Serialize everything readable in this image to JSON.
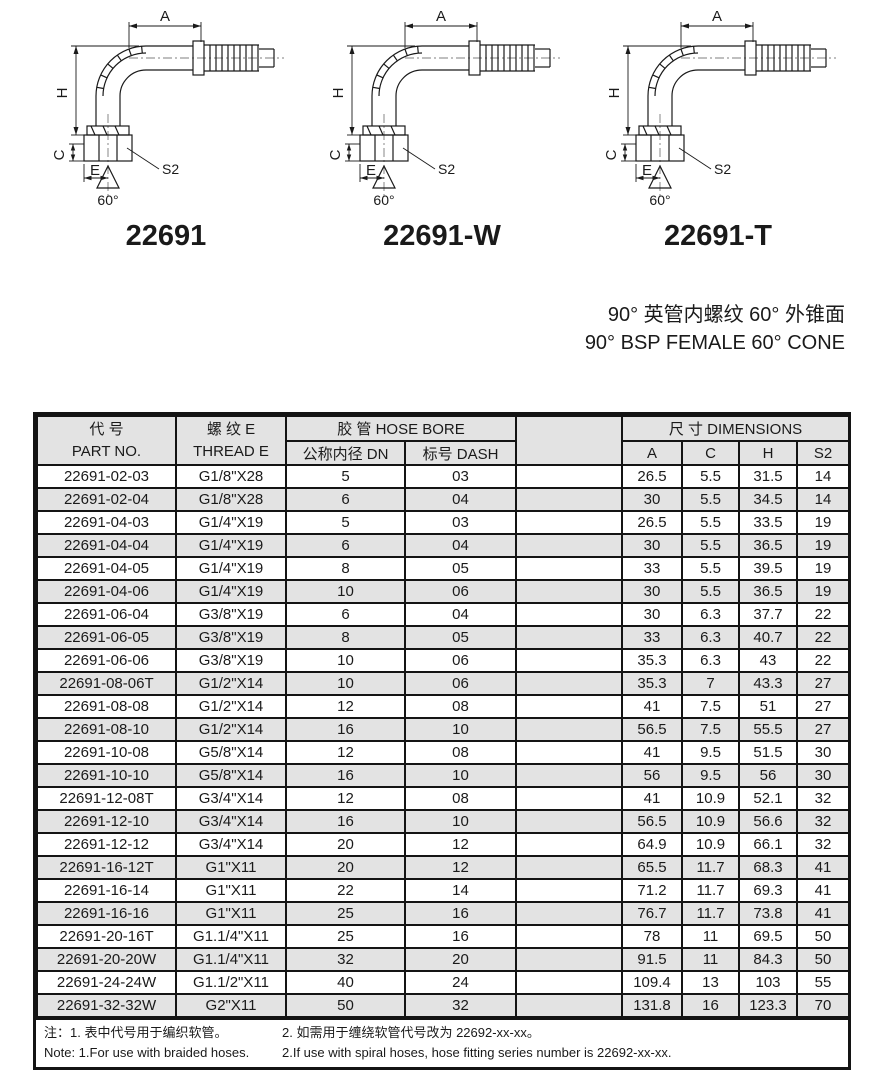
{
  "diagrams": [
    {
      "caption": "22691",
      "labels": {
        "a": "A",
        "h": "H",
        "c": "C",
        "e": "E",
        "s2": "S2",
        "angle": "60°"
      }
    },
    {
      "caption": "22691-W",
      "labels": {
        "a": "A",
        "h": "H",
        "c": "C",
        "e": "E",
        "s2": "S2",
        "angle": "60°"
      }
    },
    {
      "caption": "22691-T",
      "labels": {
        "a": "A",
        "h": "H",
        "c": "C",
        "e": "E",
        "s2": "S2",
        "angle": "60°"
      }
    }
  ],
  "title": {
    "line_zh": "90° 英管内螺纹 60° 外锥面",
    "line_en": "90° BSP FEMALE 60° CONE"
  },
  "table": {
    "header": {
      "part_no_zh": "代 号",
      "part_no_en": "PART NO.",
      "thread_zh": "螺 纹 E",
      "thread_en": "THREAD E",
      "hose_bore": "胶 管 HOSE BORE",
      "dn": "公称内径 DN",
      "dash": "标号 DASH",
      "dimensions": "尺 寸 DIMENSIONS",
      "col_a": "A",
      "col_c": "C",
      "col_h": "H",
      "col_s2": "S2"
    },
    "rows": [
      [
        "22691-02-03",
        "G1/8\"X28",
        "5",
        "03",
        "26.5",
        "5.5",
        "31.5",
        "14"
      ],
      [
        "22691-02-04",
        "G1/8\"X28",
        "6",
        "04",
        "30",
        "5.5",
        "34.5",
        "14"
      ],
      [
        "22691-04-03",
        "G1/4\"X19",
        "5",
        "03",
        "26.5",
        "5.5",
        "33.5",
        "19"
      ],
      [
        "22691-04-04",
        "G1/4\"X19",
        "6",
        "04",
        "30",
        "5.5",
        "36.5",
        "19"
      ],
      [
        "22691-04-05",
        "G1/4\"X19",
        "8",
        "05",
        "33",
        "5.5",
        "39.5",
        "19"
      ],
      [
        "22691-04-06",
        "G1/4\"X19",
        "10",
        "06",
        "30",
        "5.5",
        "36.5",
        "19"
      ],
      [
        "22691-06-04",
        "G3/8\"X19",
        "6",
        "04",
        "30",
        "6.3",
        "37.7",
        "22"
      ],
      [
        "22691-06-05",
        "G3/8\"X19",
        "8",
        "05",
        "33",
        "6.3",
        "40.7",
        "22"
      ],
      [
        "22691-06-06",
        "G3/8\"X19",
        "10",
        "06",
        "35.3",
        "6.3",
        "43",
        "22"
      ],
      [
        "22691-08-06T",
        "G1/2\"X14",
        "10",
        "06",
        "35.3",
        "7",
        "43.3",
        "27"
      ],
      [
        "22691-08-08",
        "G1/2\"X14",
        "12",
        "08",
        "41",
        "7.5",
        "51",
        "27"
      ],
      [
        "22691-08-10",
        "G1/2\"X14",
        "16",
        "10",
        "56.5",
        "7.5",
        "55.5",
        "27"
      ],
      [
        "22691-10-08",
        "G5/8\"X14",
        "12",
        "08",
        "41",
        "9.5",
        "51.5",
        "30"
      ],
      [
        "22691-10-10",
        "G5/8\"X14",
        "16",
        "10",
        "56",
        "9.5",
        "56",
        "30"
      ],
      [
        "22691-12-08T",
        "G3/4\"X14",
        "12",
        "08",
        "41",
        "10.9",
        "52.1",
        "32"
      ],
      [
        "22691-12-10",
        "G3/4\"X14",
        "16",
        "10",
        "56.5",
        "10.9",
        "56.6",
        "32"
      ],
      [
        "22691-12-12",
        "G3/4\"X14",
        "20",
        "12",
        "64.9",
        "10.9",
        "66.1",
        "32"
      ],
      [
        "22691-16-12T",
        "G1\"X11",
        "20",
        "12",
        "65.5",
        "11.7",
        "68.3",
        "41"
      ],
      [
        "22691-16-14",
        "G1\"X11",
        "22",
        "14",
        "71.2",
        "11.7",
        "69.3",
        "41"
      ],
      [
        "22691-16-16",
        "G1\"X11",
        "25",
        "16",
        "76.7",
        "11.7",
        "73.8",
        "41"
      ],
      [
        "22691-20-16T",
        "G1.1/4\"X11",
        "25",
        "16",
        "78",
        "11",
        "69.5",
        "50"
      ],
      [
        "22691-20-20W",
        "G1.1/4\"X11",
        "32",
        "20",
        "91.5",
        "11",
        "84.3",
        "50"
      ],
      [
        "22691-24-24W",
        "G1.1/2\"X11",
        "40",
        "24",
        "109.4",
        "13",
        "103",
        "55"
      ],
      [
        "22691-32-32W",
        "G2\"X11",
        "50",
        "32",
        "131.8",
        "16",
        "123.3",
        "70"
      ]
    ]
  },
  "notes": {
    "zh_1": "注：1. 表中代号用于编织软管。",
    "zh_2": "2. 如需用于缠绕软管代号改为 22692-xx-xx。",
    "en_1": "Note: 1.For use with braided hoses.",
    "en_2": "2.If use with spiral hoses, hose fitting series number is 22692-xx-xx."
  }
}
